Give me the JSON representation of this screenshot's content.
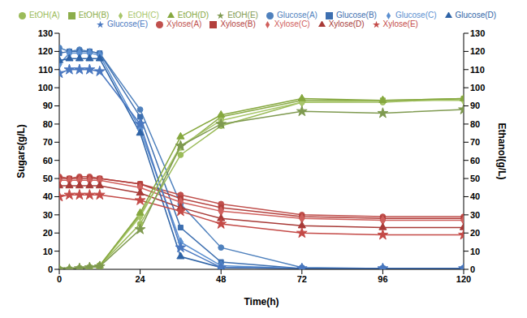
{
  "chart_data": {
    "type": "line",
    "x_label": "Time(h)",
    "y_label": "Sugars(g/L)",
    "y2_label": "Ethanol(g/L)",
    "x": [
      0,
      3,
      6,
      9,
      12,
      24,
      36,
      48,
      72,
      96,
      120
    ],
    "xlim": [
      0,
      120
    ],
    "xticks": [
      0,
      24,
      48,
      72,
      96,
      120
    ],
    "ylim": [
      0,
      130
    ],
    "yticks": [
      0,
      10,
      20,
      30,
      40,
      50,
      60,
      70,
      80,
      90,
      100,
      110,
      120,
      130
    ],
    "y2lim": [
      0,
      130
    ],
    "y2ticks": [
      0,
      10,
      20,
      30,
      40,
      50,
      60,
      70,
      80,
      90,
      100,
      110,
      120,
      130
    ],
    "grid": false,
    "legend": "top",
    "series": [
      {
        "name": "Glucose(A)",
        "color": "#4f81bd",
        "marker": "circle",
        "values": [
          122,
          120,
          121,
          120,
          119,
          88,
          36,
          12,
          1,
          0.5,
          0.5
        ]
      },
      {
        "name": "Xylose(A)",
        "color": "#c0504d",
        "marker": "circle",
        "values": [
          51,
          50,
          51,
          51,
          50,
          47,
          41,
          36,
          30,
          29,
          29
        ]
      },
      {
        "name": "Glucose(B)",
        "color": "#3d6fb0",
        "marker": "square",
        "values": [
          119,
          120,
          120,
          120,
          119,
          84,
          23,
          4,
          0.5,
          0.5,
          0.5
        ]
      },
      {
        "name": "Xylose(B)",
        "color": "#b3403d",
        "marker": "square",
        "values": [
          50,
          50,
          50,
          50,
          50,
          47,
          39,
          34,
          29,
          28,
          28
        ]
      },
      {
        "name": "Glucose(C)",
        "color": "#5b8fd0",
        "marker": "diamond",
        "values": [
          113,
          119,
          119,
          119,
          118,
          77,
          15,
          2,
          0.5,
          0.5,
          0.5
        ]
      },
      {
        "name": "Xylose(C)",
        "color": "#d0605d",
        "marker": "diamond",
        "values": [
          49,
          49,
          49,
          49,
          49,
          45,
          37,
          32,
          28,
          27,
          27
        ]
      },
      {
        "name": "Glucose(D)",
        "color": "#2e63a6",
        "marker": "triangle",
        "values": [
          115,
          116,
          116,
          116,
          116,
          75,
          7,
          1,
          0.5,
          0.5,
          0.5
        ]
      },
      {
        "name": "Xylose(D)",
        "color": "#a83a37",
        "marker": "triangle",
        "values": [
          46,
          46,
          46,
          46,
          46,
          42,
          34,
          28,
          24,
          23,
          23
        ]
      },
      {
        "name": "Glucose(E)",
        "color": "#4a78c0",
        "marker": "star",
        "values": [
          108,
          110,
          110,
          110,
          109,
          80,
          12,
          1,
          0.5,
          0.5,
          0.5
        ]
      },
      {
        "name": "Xylose(E)",
        "color": "#c44a47",
        "marker": "star",
        "values": [
          40,
          41,
          41,
          41,
          41,
          38,
          32,
          25,
          20,
          19,
          19
        ]
      },
      {
        "name": "EtOH(A)",
        "color": "#9bbb59",
        "marker": "circle",
        "axis": "y2",
        "values": [
          0,
          0,
          0.5,
          1,
          2,
          25,
          63,
          79,
          92,
          92,
          94
        ]
      },
      {
        "name": "EtOH(B)",
        "color": "#8cad4a",
        "marker": "square",
        "axis": "y2",
        "values": [
          0,
          0,
          0.5,
          1,
          2,
          30,
          67,
          84,
          93,
          93,
          94
        ]
      },
      {
        "name": "EtOH(C)",
        "color": "#a8c66a",
        "marker": "diamond",
        "axis": "y2",
        "values": [
          0,
          0,
          0.5,
          1,
          2,
          29,
          68,
          82,
          92,
          93,
          93
        ]
      },
      {
        "name": "EtOH(D)",
        "color": "#86a83f",
        "marker": "triangle",
        "axis": "y2",
        "values": [
          0,
          0,
          0.5,
          1,
          2,
          31,
          73,
          85,
          94,
          93,
          94
        ]
      },
      {
        "name": "EtOH(E)",
        "color": "#7f9a50",
        "marker": "star",
        "axis": "y2",
        "values": [
          0,
          0,
          0.5,
          1,
          1.5,
          22,
          68,
          80,
          87,
          86,
          88
        ]
      }
    ]
  }
}
